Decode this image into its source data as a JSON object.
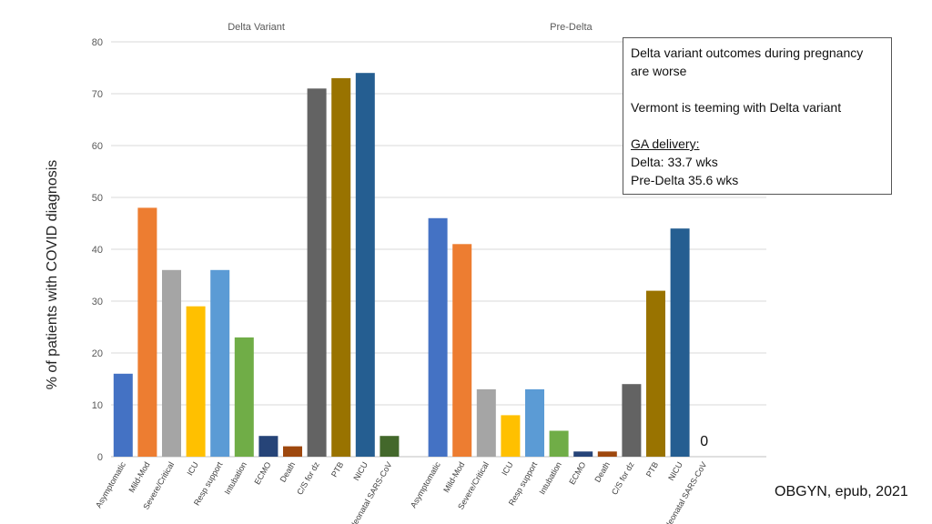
{
  "chart_data": {
    "type": "bar",
    "ylabel": "% of patients with COVID diagnosis",
    "ylim": [
      0,
      80
    ],
    "yticks": [
      0,
      10,
      20,
      30,
      40,
      50,
      60,
      70,
      80
    ],
    "grid": true,
    "groups": [
      {
        "name": "Delta Variant",
        "categories": [
          "Asymptomatic",
          "Mild-Mod",
          "Severe/Critical",
          "ICU",
          "Resp support",
          "Intubation",
          "ECMO",
          "Death",
          "C/S for dz",
          "PTB",
          "NICU",
          "Neonatal SARS-CoV"
        ],
        "values": [
          16,
          48,
          36,
          29,
          36,
          23,
          4,
          2,
          71,
          73,
          74,
          4
        ],
        "value_labels": [
          "",
          "",
          "",
          "",
          "",
          "",
          "",
          "",
          "",
          "",
          "",
          ""
        ]
      },
      {
        "name": "Pre-Delta",
        "categories": [
          "Asymptomatic",
          "Mild-Mod",
          "Severe/Critical",
          "ICU",
          "Resp support",
          "Intubation",
          "ECMO",
          "Death",
          "C/S for dz",
          "PTB",
          "NICU",
          "Neonatal SARS-CoV"
        ],
        "values": [
          46,
          41,
          13,
          8,
          13,
          5,
          1,
          1,
          14,
          32,
          44,
          0
        ],
        "value_labels": [
          "",
          "",
          "",
          "",
          "",
          "",
          "",
          "",
          "",
          "",
          "",
          "0"
        ]
      }
    ],
    "colors": [
      "#4472C4",
      "#ED7D31",
      "#A5A5A5",
      "#FFC000",
      "#5B9BD5",
      "#70AD47",
      "#264478",
      "#9E480E",
      "#636363",
      "#997300",
      "#255E91",
      "#43682B"
    ]
  },
  "annotation": {
    "line1": "Delta variant outcomes during pregnancy are worse",
    "line2": "Vermont is teeming with Delta variant",
    "heading": "GA delivery:",
    "delta": "Delta: 33.7 wks",
    "pre_delta": "Pre-Delta 35.6 wks"
  },
  "source": "OBGYN, epub, 2021"
}
